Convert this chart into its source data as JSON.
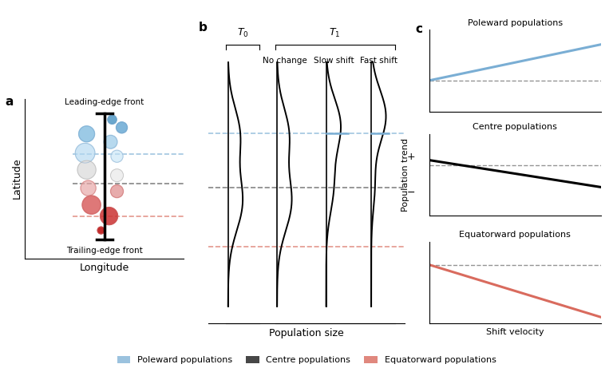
{
  "title_a": "a",
  "title_b": "b",
  "title_c": "c",
  "xlabel_a": "Longitude",
  "ylabel_a": "Latitude",
  "xlabel_b": "Population size",
  "ylabel_c": "Population trend",
  "xlabel_c": "Shift velocity",
  "label_leading": "Leading-edge front",
  "label_trailing": "Trailing-edge front",
  "t0_label": "$T_0$",
  "t1_label": "$T_1$",
  "no_change": "No change",
  "slow_shift": "Slow shift",
  "fast_shift": "Fast shift",
  "poleward_label": "Poleward populations",
  "centre_label": "Centre populations",
  "equatorward_label": "Equatorward populations",
  "blue_color": "#7aaed4",
  "red_color": "#d96b5e",
  "legend_blue_label": "Poleward populations",
  "legend_black_label": "Centre populations",
  "legend_red_label": "Equatorward populations",
  "bg_color": "#ffffff",
  "blue_line_y": 0.655,
  "black_line_y": 0.47,
  "red_line_y": 0.265
}
